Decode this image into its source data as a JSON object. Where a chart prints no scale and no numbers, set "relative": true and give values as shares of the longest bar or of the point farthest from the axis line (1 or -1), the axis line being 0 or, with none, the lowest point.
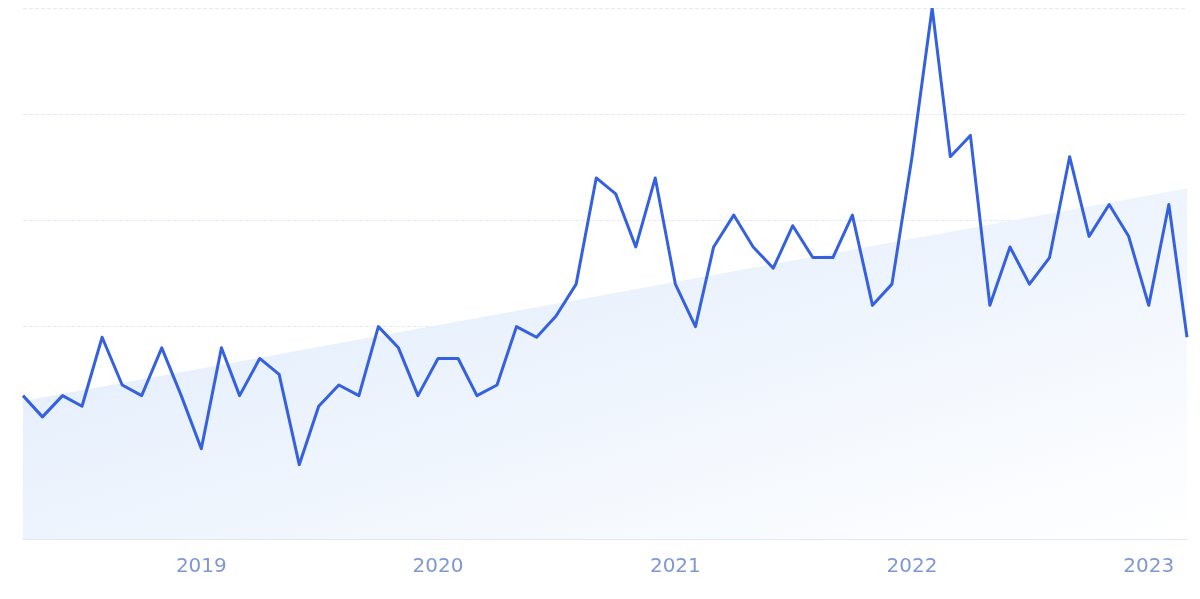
{
  "chart_data": {
    "type": "line",
    "relative": true,
    "grid": "y",
    "marker": "none",
    "line_style": "solid",
    "xlim": [
      "2018-04",
      "2023-03"
    ],
    "xticks": [
      {
        "value": "2019-01",
        "label": "2019"
      },
      {
        "value": "2020-01",
        "label": "2020"
      },
      {
        "value": "2021-01",
        "label": "2021"
      },
      {
        "value": "2022-01",
        "label": "2022"
      },
      {
        "value": "2023-01",
        "label": "2023"
      }
    ],
    "series": [
      {
        "type": "area",
        "color": "#dce9fb",
        "x": [
          "2018-04",
          "2023-03"
        ],
        "values": [
          0.26,
          0.66
        ]
      },
      {
        "color": "#3561e0",
        "x": [
          "2018-04",
          "2018-05",
          "2018-06",
          "2018-07",
          "2018-08",
          "2018-09",
          "2018-10",
          "2018-11",
          "2018-12",
          "2019-01",
          "2019-02",
          "2019-03",
          "2019-04",
          "2019-05",
          "2019-06",
          "2019-07",
          "2019-08",
          "2019-09",
          "2019-10",
          "2019-11",
          "2019-12",
          "2020-01",
          "2020-02",
          "2020-03",
          "2020-04",
          "2020-05",
          "2020-06",
          "2020-07",
          "2020-08",
          "2020-09",
          "2020-10",
          "2020-11",
          "2020-12",
          "2021-01",
          "2021-02",
          "2021-03",
          "2021-04",
          "2021-05",
          "2021-06",
          "2021-07",
          "2021-08",
          "2021-09",
          "2021-10",
          "2021-11",
          "2021-12",
          "2022-01",
          "2022-02",
          "2022-03",
          "2022-04",
          "2022-05",
          "2022-06",
          "2022-07",
          "2022-08",
          "2022-09",
          "2022-10",
          "2022-11",
          "2022-12",
          "2023-01",
          "2023-02",
          "2023-03"
        ],
        "values": [
          0.27,
          0.23,
          0.27,
          0.25,
          0.38,
          0.29,
          0.27,
          0.36,
          0.27,
          0.17,
          0.36,
          0.27,
          0.34,
          0.31,
          0.14,
          0.25,
          0.29,
          0.27,
          0.4,
          0.36,
          0.27,
          0.34,
          0.34,
          0.27,
          0.29,
          0.4,
          0.38,
          0.42,
          0.48,
          0.68,
          0.65,
          0.55,
          0.68,
          0.48,
          0.4,
          0.55,
          0.61,
          0.55,
          0.51,
          0.59,
          0.53,
          0.53,
          0.61,
          0.44,
          0.48,
          0.72,
          1,
          0.72,
          0.76,
          0.44,
          0.55,
          0.48,
          0.53,
          0.72,
          0.57,
          0.63,
          0.57,
          0.44,
          0.63,
          0.38
        ]
      }
    ]
  }
}
